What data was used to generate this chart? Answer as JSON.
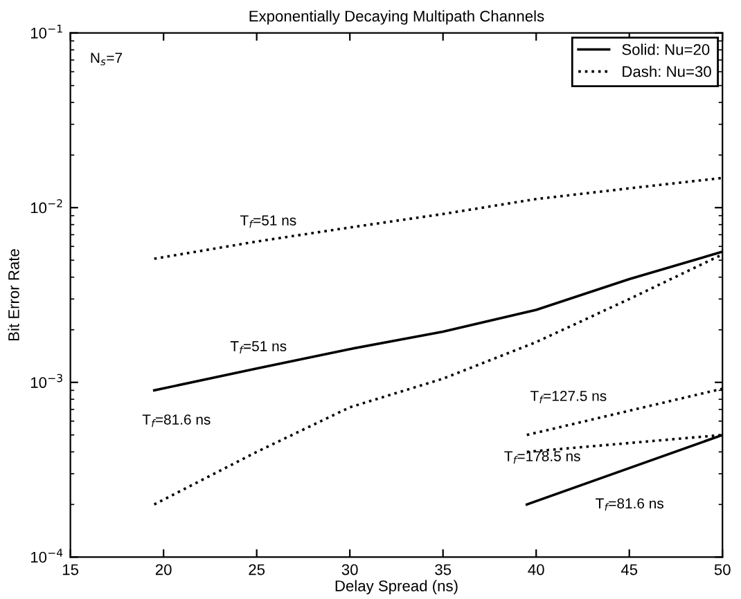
{
  "chart_data": {
    "type": "line",
    "title": "Exponentially Decaying Multipath Channels",
    "xlabel": "Delay Spread (ns)",
    "ylabel": "Bit Error Rate",
    "log": "y",
    "xlim": [
      15,
      50
    ],
    "ylim": [
      0.0001,
      0.1
    ],
    "xticks": [
      15,
      20,
      25,
      30,
      35,
      40,
      45,
      50
    ],
    "yticks": [
      {
        "value": 0.0001,
        "label": "10$^{−4}$"
      },
      {
        "value": 0.001,
        "label": "10$^{−3}$"
      },
      {
        "value": 0.01,
        "label": "10$^{−2}$"
      },
      {
        "value": 0.1,
        "label": "10$^{−1}$"
      }
    ],
    "grid": false,
    "legend": "top right",
    "marker": "none",
    "series": [
      {
        "name": "Solid: Nu=20",
        "color": "#000000",
        "line_style": "solid",
        "x": [
          19.5,
          25,
          30,
          35,
          40,
          45,
          50
        ],
        "values": [
          0.0009,
          0.0012,
          0.00155,
          0.00195,
          0.0026,
          0.0039,
          0.0056
        ]
      },
      {
        "name": "Dash: Nu=30",
        "color": "#000000",
        "line_style": "dotted",
        "x": [
          19.5,
          25,
          30,
          35,
          40,
          45,
          50
        ],
        "values": [
          0.0051,
          0.0064,
          0.0077,
          0.0092,
          0.0112,
          0.0129,
          0.0148
        ]
      },
      {
        "color": "#000000",
        "line_style": "dotted",
        "x": [
          19.5,
          25,
          30,
          35,
          40,
          45,
          50
        ],
        "values": [
          0.0002,
          0.0004,
          0.00072,
          0.00105,
          0.0017,
          0.003,
          0.0054
        ]
      },
      {
        "color": "#000000",
        "line_style": "dotted",
        "x": [
          39.5,
          50
        ],
        "values": [
          0.0005,
          0.00092
        ]
      },
      {
        "color": "#000000",
        "line_style": "dotted",
        "x": [
          39.5,
          50
        ],
        "values": [
          0.0004,
          0.0005
        ]
      },
      {
        "color": "#000000",
        "line_style": "solid",
        "x": [
          39.5,
          50
        ],
        "values": [
          0.0002,
          0.0005
        ]
      }
    ],
    "annotations": [
      "N$_{s}$=7",
      "T$_{f}$=51 ns",
      "T$_{f}$=51 ns",
      "T$_{f}$=81.6 ns",
      "T$_{f}$=127.5 ns",
      "T$_{f}$=178.5 ns",
      "T$_{f}$=81.6 ns"
    ]
  }
}
